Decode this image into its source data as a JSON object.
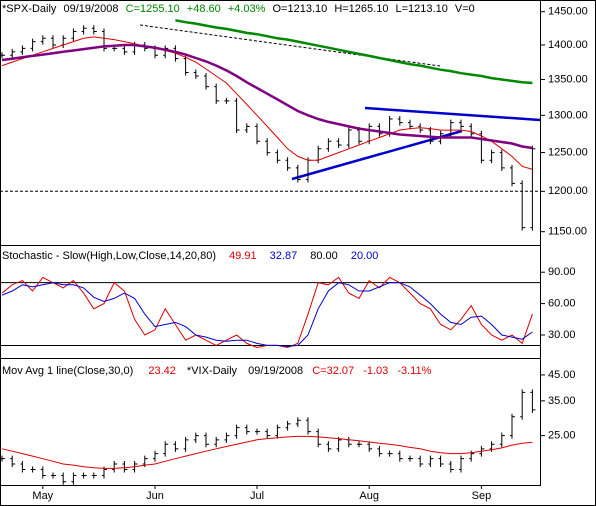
{
  "chart_data": [
    {
      "type": "stock",
      "header": [
        "*SPX-Daily",
        "09/19/2008",
        "C=1255.10",
        "+48.60",
        "+4.03%",
        "O=1213.10",
        "H=1265.10",
        "L=1213.10",
        "V=0"
      ],
      "log_scale": true,
      "ylim": [
        1134,
        1468
      ],
      "yticks": [
        {
          "value": 1150,
          "label": "1150.00"
        },
        {
          "value": 1200,
          "label": "1200.00"
        },
        {
          "value": 1250,
          "label": "1250.00"
        },
        {
          "value": 1300,
          "label": "1300.00"
        },
        {
          "value": 1350,
          "label": "1350.00"
        },
        {
          "value": 1400,
          "label": "1400.00"
        },
        {
          "value": 1450,
          "label": "1450.00"
        }
      ],
      "reference_line": 1200,
      "series": [
        {
          "style": "bars",
          "color": "#000000",
          "values": [
            1385,
            1390,
            1395,
            1405,
            1410,
            1400,
            1410,
            1420,
            1425,
            1420,
            1395,
            1395,
            1390,
            1400,
            1395,
            1385,
            1395,
            1380,
            1360,
            1355,
            1340,
            1320,
            1320,
            1280,
            1285,
            1265,
            1250,
            1240,
            1230,
            1215,
            1240,
            1255,
            1265,
            1260,
            1280,
            1265,
            1285,
            1275,
            1295,
            1290,
            1285,
            1280,
            1265,
            1275,
            1290,
            1285,
            1275,
            1240,
            1250,
            1230,
            1210,
            1155,
            1255.1
          ]
        },
        {
          "style": "line",
          "color": "#dd0000",
          "width": 1,
          "values": [
            1370,
            1375,
            1380,
            1385,
            1390,
            1395,
            1400,
            1405,
            1410,
            1412,
            1410,
            1408,
            1405,
            1402,
            1398,
            1395,
            1392,
            1388,
            1382,
            1375,
            1365,
            1355,
            1345,
            1330,
            1315,
            1300,
            1285,
            1270,
            1255,
            1245,
            1240,
            1240,
            1245,
            1250,
            1255,
            1260,
            1265,
            1270,
            1275,
            1280,
            1282,
            1283,
            1282,
            1280,
            1280,
            1280,
            1278,
            1272,
            1265,
            1255,
            1245,
            1232,
            1228
          ]
        },
        {
          "style": "line",
          "color": "#800080",
          "width": 2.5,
          "values": [
            1378,
            1380,
            1382,
            1384,
            1386,
            1388,
            1390,
            1392,
            1394,
            1396,
            1398,
            1399,
            1400,
            1400,
            1398,
            1396,
            1393,
            1390,
            1386,
            1381,
            1376,
            1370,
            1363,
            1355,
            1346,
            1338,
            1330,
            1322,
            1314,
            1306,
            1300,
            1295,
            1291,
            1288,
            1285,
            1282,
            1280,
            1278,
            1276,
            1274,
            1273,
            1272,
            1271,
            1270,
            1270,
            1270,
            1270,
            1268,
            1266,
            1264,
            1262,
            1258,
            1256
          ]
        },
        {
          "style": "line",
          "color": "#008800",
          "width": 2.5,
          "values": [
            null,
            null,
            null,
            null,
            null,
            null,
            null,
            null,
            null,
            null,
            null,
            null,
            null,
            null,
            null,
            null,
            null,
            1437,
            1434,
            1432,
            1429,
            1426,
            1424,
            1421,
            1418,
            1416,
            1413,
            1410,
            1408,
            1405,
            1402,
            1399,
            1396,
            1393,
            1390,
            1387,
            1384,
            1381,
            1378,
            1375,
            1372,
            1370,
            1367,
            1364,
            1362,
            1359,
            1357,
            1355,
            1352,
            1350,
            1348,
            1346,
            1345
          ]
        }
      ]
    },
    {
      "type": "line",
      "header": [
        "Stochastic - Slow(High,Low,Close,14,20,80)"
      ],
      "ylim": [
        8,
        116
      ],
      "yticks": [
        {
          "value": 30,
          "label": "30.00"
        },
        {
          "value": 60,
          "label": "60.00"
        },
        {
          "value": 90,
          "label": "90.00"
        }
      ],
      "levels": [
        {
          "value": 80,
          "label": "80.00"
        },
        {
          "value": 20,
          "label": "20.00"
        }
      ],
      "series": [
        {
          "color": "#dd0000",
          "width": 1,
          "values": [
            70,
            78,
            82,
            72,
            85,
            80,
            75,
            82,
            70,
            55,
            60,
            80,
            72,
            45,
            30,
            35,
            55,
            40,
            25,
            30,
            25,
            20,
            25,
            30,
            22,
            18,
            20,
            20,
            18,
            22,
            50,
            80,
            78,
            85,
            70,
            65,
            82,
            75,
            85,
            80,
            70,
            60,
            55,
            40,
            35,
            45,
            58,
            40,
            30,
            25,
            30,
            22,
            49.91
          ]
        },
        {
          "color": "#0000cc",
          "width": 1,
          "values": [
            68,
            72,
            78,
            76,
            78,
            80,
            78,
            78,
            75,
            66,
            62,
            65,
            70,
            65,
            50,
            38,
            40,
            42,
            38,
            30,
            28,
            25,
            24,
            25,
            25,
            22,
            20,
            20,
            19,
            20,
            30,
            55,
            72,
            80,
            78,
            72,
            72,
            76,
            80,
            80,
            76,
            68,
            60,
            50,
            42,
            40,
            47,
            48,
            40,
            30,
            28,
            26,
            32.87
          ]
        }
      ]
    },
    {
      "type": "stock",
      "header": [
        "Mov Avg 1 line(Close,30,0)",
        "*VIX-Daily",
        "09/19/2008",
        "C=32.07",
        "-1.03",
        "-3.11%"
      ],
      "log_scale": true,
      "ylim": [
        15.5,
        53
      ],
      "yticks": [
        {
          "value": 25,
          "label": "25.00"
        },
        {
          "value": 35,
          "label": "35.00"
        },
        {
          "value": 45,
          "label": "45.00"
        }
      ],
      "categories": [
        null,
        null,
        null,
        null,
        "May",
        null,
        null,
        null,
        null,
        null,
        null,
        null,
        null,
        null,
        null,
        "Jun",
        null,
        null,
        null,
        null,
        null,
        null,
        null,
        null,
        null,
        "Jul",
        null,
        null,
        null,
        null,
        null,
        null,
        null,
        null,
        null,
        null,
        "Aug",
        null,
        null,
        null,
        null,
        null,
        null,
        null,
        null,
        null,
        null,
        "Sep",
        null,
        null,
        null,
        null,
        null
      ],
      "series": [
        {
          "style": "bars",
          "color": "#000000",
          "values": [
            20,
            19,
            18,
            18,
            17,
            17,
            16,
            17,
            17,
            17,
            18,
            19,
            18,
            19,
            20,
            21,
            23,
            22,
            24,
            25,
            23,
            24,
            25,
            27,
            26,
            26,
            25,
            27,
            28,
            29,
            26,
            23,
            22,
            24,
            23,
            23,
            22,
            21,
            21,
            20,
            20,
            19,
            20,
            19,
            18,
            20,
            21,
            22,
            23,
            25,
            30,
            38,
            32.07
          ]
        },
        {
          "style": "line",
          "color": "#dd0000",
          "width": 1,
          "values": [
            22,
            21.5,
            21,
            20.5,
            20,
            19.5,
            19,
            18.8,
            18.5,
            18.3,
            18.2,
            18.2,
            18.3,
            18.5,
            18.8,
            19,
            19.5,
            20,
            20.5,
            21,
            21.5,
            22,
            22.5,
            23,
            23.5,
            24,
            24.3,
            24.5,
            24.7,
            24.8,
            24.8,
            24.7,
            24.5,
            24.3,
            24,
            23.8,
            23.5,
            23.2,
            23,
            22.7,
            22.3,
            22,
            21.5,
            21.2,
            21,
            21,
            21.2,
            21.5,
            21.8,
            22.2,
            22.8,
            23.2,
            23.42
          ]
        }
      ]
    }
  ]
}
